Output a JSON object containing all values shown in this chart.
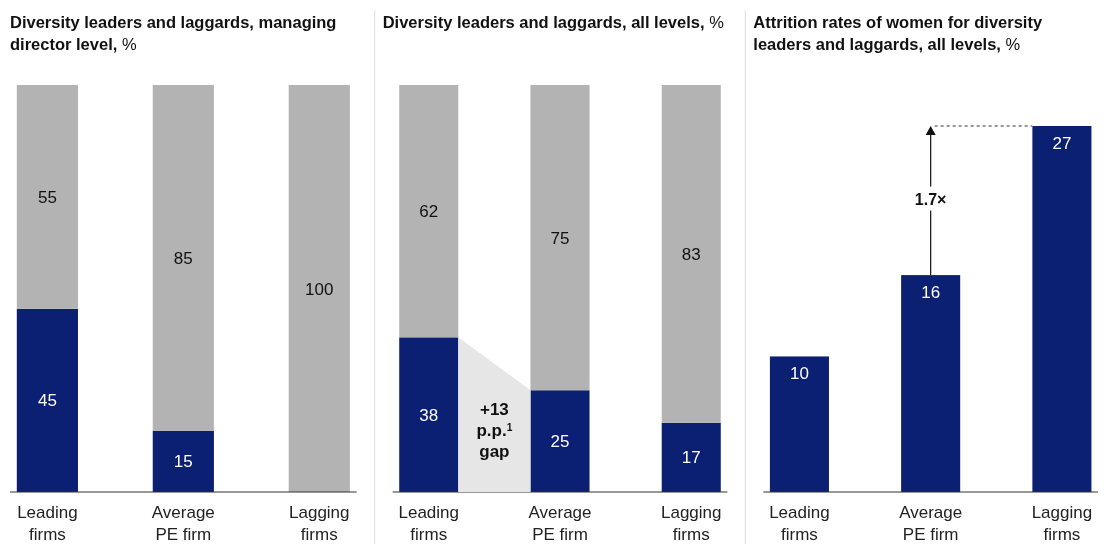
{
  "chart_data": [
    {
      "type": "bar",
      "title": "Diversity leaders and laggards, managing director level, %",
      "categories": [
        "Leading firms",
        "Average PE firm",
        "Lagging firms"
      ],
      "stacked": true,
      "series": [
        {
          "color": "#0b1f73",
          "values": [
            45,
            15,
            0
          ],
          "value_labels": [
            "45",
            "15",
            null
          ]
        },
        {
          "color": "#b3b3b3",
          "values": [
            55,
            85,
            100
          ],
          "value_labels": [
            "55",
            "85",
            "100"
          ]
        }
      ]
    },
    {
      "type": "bar",
      "title": "Diversity leaders and laggards, all levels, %",
      "categories": [
        "Leading firms",
        "Average PE firm",
        "Lagging firms"
      ],
      "stacked": true,
      "data_labels": true,
      "annotations": [
        "+13 p.p.$^{1}$ gap"
      ],
      "series": [
        {
          "color": "#0b1f73",
          "values": [
            38,
            25,
            17
          ]
        },
        {
          "color": "#b3b3b3",
          "values": [
            62,
            75,
            83
          ]
        }
      ]
    },
    {
      "type": "bar",
      "title": "Attrition rates of women for diversity leaders and laggards, all levels, %",
      "categories": [
        "Leading firms",
        "Average PE firm",
        "Lagging firms"
      ],
      "data_labels": true,
      "annotations": [
        "1.7×"
      ],
      "series": [
        {
          "color": "#0b1f73",
          "values": [
            10,
            16,
            27
          ]
        }
      ]
    }
  ]
}
